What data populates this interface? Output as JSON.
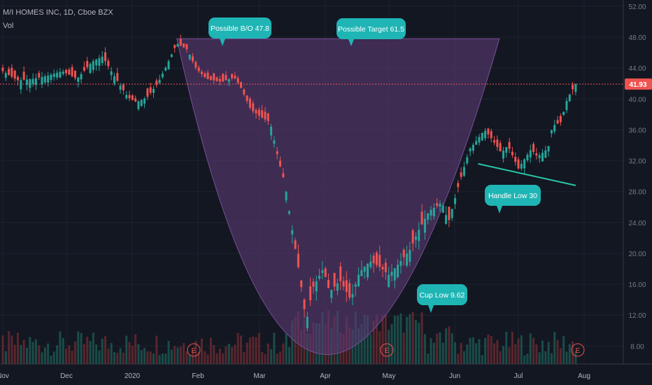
{
  "header": {
    "symbol_line": "M/I HOMES INC, 1D, Cboe BZX",
    "volume_label": "Vol"
  },
  "price_axis": {
    "ticks": [
      "52.00",
      "48.00",
      "44.00",
      "40.00",
      "36.00",
      "32.00",
      "28.00",
      "24.00",
      "20.00",
      "16.00",
      "12.00",
      "8.00"
    ],
    "last_price_label": "41.93"
  },
  "time_axis": {
    "ticks": [
      "Nov",
      "Dec",
      "2020",
      "Feb",
      "Mar",
      "Apr",
      "May",
      "Jun",
      "Jul",
      "Aug"
    ]
  },
  "annotations": [
    {
      "text": "Possible B/O  47.8"
    },
    {
      "text": "Possible Target  61.5"
    },
    {
      "text": "Handle Low 30"
    },
    {
      "text": "Cup Low 9.62"
    }
  ],
  "earnings_markers": [
    {
      "text": "E",
      "date": "2020-01-30"
    },
    {
      "text": "E",
      "date": "2020-04-30"
    },
    {
      "text": "E",
      "date": "2020-07-29"
    }
  ],
  "colors": {
    "background": "#131722",
    "up_candle": "#26a69a",
    "down_candle": "#ef5350",
    "up_volume": "#1d5a52",
    "down_volume": "#6b2a31",
    "cup_fill": "#5b3a75",
    "callout": "#1fb5b5",
    "handle_line": "#26c6a6",
    "price_line": "#ef5350"
  },
  "chart_data": {
    "type": "candlestick",
    "title": "M/I HOMES INC, 1D, Cboe BZX",
    "xlabel": "",
    "ylabel": "",
    "ylim": [
      6,
      53
    ],
    "grid": true,
    "last_price": 41.93,
    "highlights": {
      "possible_breakout": 47.8,
      "possible_target": 61.5,
      "handle_low": 30,
      "cup_low": 9.62
    },
    "cup_pattern": {
      "rim_start": {
        "date": "2020-01-22",
        "price": 47.8
      },
      "rim_end": {
        "date": "2020-06-22",
        "price": 47.8
      },
      "bottom": {
        "date": "2020-04-02",
        "price": 6.9
      }
    },
    "handle_trendline": {
      "start": {
        "date": "2020-06-12",
        "price": 31.6
      },
      "end": {
        "date": "2020-07-28",
        "price": 28.8
      }
    },
    "series": [
      {
        "name": "Price",
        "points": [
          {
            "date": "2019-11-01",
            "price": 43.6
          },
          {
            "date": "2019-11-08",
            "price": 42.4
          },
          {
            "date": "2019-11-15",
            "price": 42.6
          },
          {
            "date": "2019-11-22",
            "price": 43.0
          },
          {
            "date": "2019-11-29",
            "price": 43.6
          },
          {
            "date": "2019-12-06",
            "price": 42.6
          },
          {
            "date": "2019-12-13",
            "price": 44.8
          },
          {
            "date": "2019-12-18",
            "price": 45.5
          },
          {
            "date": "2019-12-23",
            "price": 43.2
          },
          {
            "date": "2019-12-30",
            "price": 40.2
          },
          {
            "date": "2020-01-03",
            "price": 39.6
          },
          {
            "date": "2020-01-08",
            "price": 40.2
          },
          {
            "date": "2020-01-13",
            "price": 42.0
          },
          {
            "date": "2020-01-17",
            "price": 44.2
          },
          {
            "date": "2020-01-22",
            "price": 47.2
          },
          {
            "date": "2020-01-27",
            "price": 46.4
          },
          {
            "date": "2020-01-31",
            "price": 44.0
          },
          {
            "date": "2020-02-05",
            "price": 42.6
          },
          {
            "date": "2020-02-12",
            "price": 42.2
          },
          {
            "date": "2020-02-18",
            "price": 42.8
          },
          {
            "date": "2020-02-21",
            "price": 41.6
          },
          {
            "date": "2020-02-26",
            "price": 38.6
          },
          {
            "date": "2020-03-02",
            "price": 37.6
          },
          {
            "date": "2020-03-06",
            "price": 37.0
          },
          {
            "date": "2020-03-10",
            "price": 32.0
          },
          {
            "date": "2020-03-13",
            "price": 29.0
          },
          {
            "date": "2020-03-17",
            "price": 22.0
          },
          {
            "date": "2020-03-20",
            "price": 17.0
          },
          {
            "date": "2020-03-23",
            "price": 11.0
          },
          {
            "date": "2020-03-26",
            "price": 15.5
          },
          {
            "date": "2020-03-31",
            "price": 18.0
          },
          {
            "date": "2020-04-03",
            "price": 15.0
          },
          {
            "date": "2020-04-08",
            "price": 16.5
          },
          {
            "date": "2020-04-13",
            "price": 14.0
          },
          {
            "date": "2020-04-17",
            "price": 17.5
          },
          {
            "date": "2020-04-22",
            "price": 19.0
          },
          {
            "date": "2020-04-27",
            "price": 18.2
          },
          {
            "date": "2020-05-01",
            "price": 17.2
          },
          {
            "date": "2020-05-06",
            "price": 18.8
          },
          {
            "date": "2020-05-11",
            "price": 20.5
          },
          {
            "date": "2020-05-15",
            "price": 23.0
          },
          {
            "date": "2020-05-20",
            "price": 25.5
          },
          {
            "date": "2020-05-26",
            "price": 26.6
          },
          {
            "date": "2020-05-29",
            "price": 24.0
          },
          {
            "date": "2020-06-03",
            "price": 29.0
          },
          {
            "date": "2020-06-08",
            "price": 33.5
          },
          {
            "date": "2020-06-11",
            "price": 34.5
          },
          {
            "date": "2020-06-15",
            "price": 36.0
          },
          {
            "date": "2020-06-18",
            "price": 35.0
          },
          {
            "date": "2020-06-23",
            "price": 33.0
          },
          {
            "date": "2020-06-26",
            "price": 34.0
          },
          {
            "date": "2020-07-01",
            "price": 31.0
          },
          {
            "date": "2020-07-07",
            "price": 33.5
          },
          {
            "date": "2020-07-10",
            "price": 32.5
          },
          {
            "date": "2020-07-15",
            "price": 33.6
          },
          {
            "date": "2020-07-17",
            "price": 36.5
          },
          {
            "date": "2020-07-21",
            "price": 37.0
          },
          {
            "date": "2020-07-24",
            "price": 40.0
          },
          {
            "date": "2020-07-28",
            "price": 41.93
          }
        ]
      }
    ]
  }
}
